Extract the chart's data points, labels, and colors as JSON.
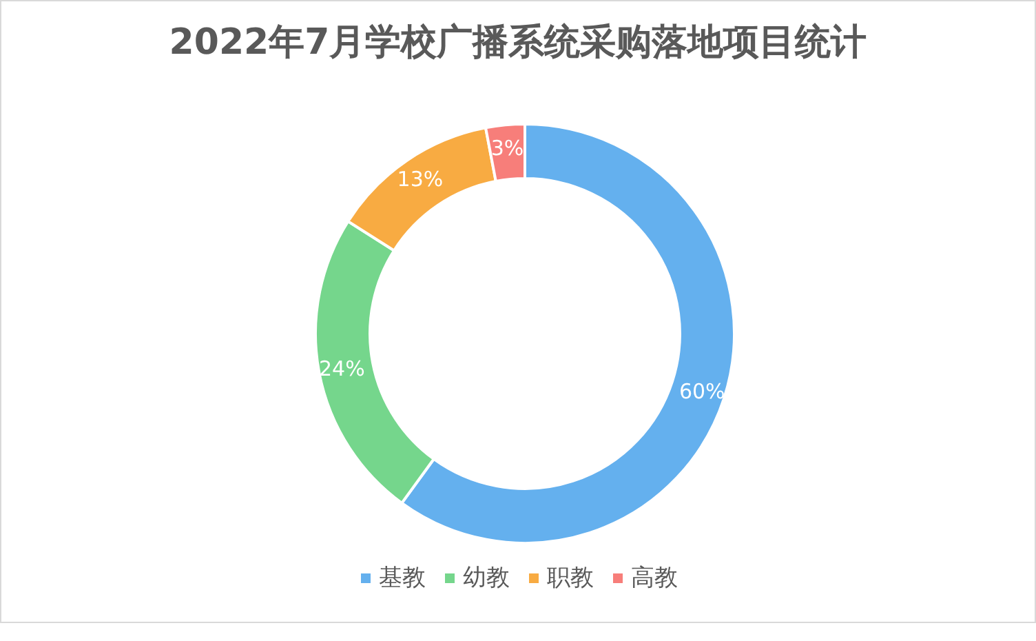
{
  "chart_data": {
    "type": "donut",
    "title": "2022年7月学校广播系统采购落地项目统计",
    "categories": [
      "基教",
      "幼教",
      "职教",
      "高教"
    ],
    "values": [
      60,
      24,
      13,
      3
    ],
    "colors": [
      "#64b0ee",
      "#75d68c",
      "#f8ab42",
      "#f77e7a"
    ],
    "value_labels": [
      "60%",
      "24%",
      "13%",
      "3%"
    ],
    "legend": "bottom"
  }
}
